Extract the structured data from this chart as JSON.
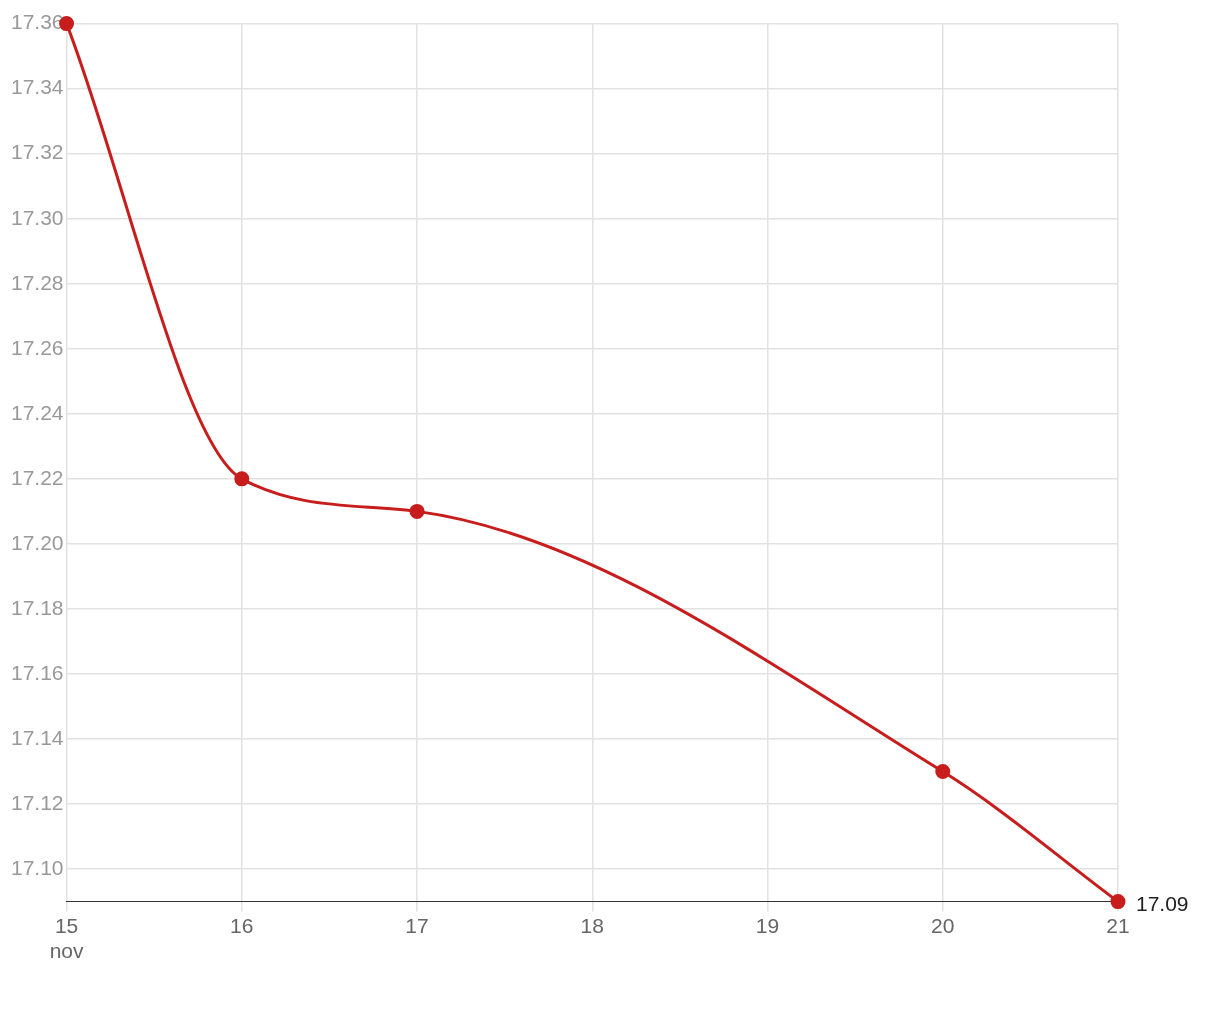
{
  "chart_data": {
    "type": "line",
    "x": [
      "--11-15",
      "--11-16",
      "--11-17",
      "--11-20",
      "--11-21"
    ],
    "series": [
      {
        "color": "#c71e1d",
        "values": [
          17.36,
          17.22,
          17.21,
          17.13,
          17.09
        ],
        "value_labels": [
          null,
          null,
          null,
          null,
          "17.09"
        ]
      }
    ],
    "xlim": [
      "--11-15",
      "--11-21"
    ],
    "xticks": [
      {
        "value": "--11-15",
        "label": "15\nnov"
      },
      {
        "value": "--11-16",
        "label": "16"
      },
      {
        "value": "--11-17",
        "label": "17"
      },
      {
        "value": "--11-18",
        "label": "18"
      },
      {
        "value": "--11-19",
        "label": "19"
      },
      {
        "value": "--11-20",
        "label": "20"
      },
      {
        "value": "--11-21",
        "label": "21"
      }
    ],
    "ylim": [
      17.09,
      17.36
    ],
    "yticks": [
      {
        "value": 17.1,
        "label": "17.10"
      },
      17.12,
      17.14,
      17.16,
      17.18,
      {
        "value": 17.2,
        "label": "17.20"
      },
      17.22,
      17.24,
      17.26,
      17.28,
      {
        "value": 17.3,
        "label": "17.30"
      },
      17.32,
      17.34,
      17.36
    ],
    "grid": true,
    "legend": false,
    "marker": "circle",
    "line_style": "solid"
  }
}
